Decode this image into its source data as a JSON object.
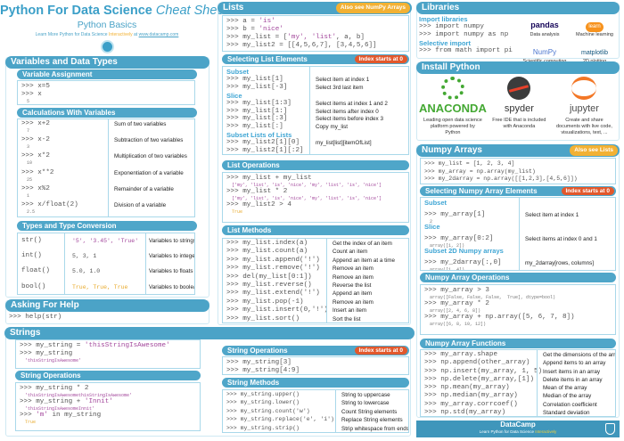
{
  "header": {
    "title_main": "Python For Data Science",
    "title_italic": "Cheat Sheet",
    "subtitle": "Python Basics",
    "learn_text": "Learn More Python for Data Science",
    "learn_interactive": "Interactively",
    "learn_at": "at",
    "learn_link": "www.datacamp.com"
  },
  "colors": {
    "bar": "#4ba3c7",
    "border": "#a9d8ea",
    "badge_orange": "#f2b134",
    "badge_red": "#e2582c",
    "string": "#a3489c",
    "boolean": "#e8a92a",
    "label": "#3ea5d4"
  },
  "vars": {
    "title": "Variables and Data Types",
    "assign": {
      "title": "Variable Assignment",
      "lines": [
        {
          "code": ">>> x=5"
        },
        {
          "code": ">>> x"
        },
        {
          "out": "5"
        }
      ]
    },
    "calc": {
      "title": "Calculations With Variables",
      "rows": [
        {
          "code": ">>> x+2",
          "out": "7",
          "desc": "Sum of two variables"
        },
        {
          "code": ">>> x-2",
          "out": "3",
          "desc": "Subtraction of two variables"
        },
        {
          "code": ">>> x*2",
          "out": "10",
          "desc": "Multiplication of two variables"
        },
        {
          "code": ">>> x**2",
          "out": "25",
          "desc": "Exponentiation of a variable"
        },
        {
          "code": ">>> x%2",
          "out": "1",
          "desc": "Remainder of a variable"
        },
        {
          "code": ">>> x/float(2)",
          "out": "2.5",
          "desc": "Division of a variable"
        }
      ]
    },
    "types": {
      "title": "Types and Type Conversion",
      "rows": [
        {
          "fn": "str()",
          "vals": "'5', '3.45', 'True'",
          "vc": "purple",
          "desc": "Variables to strings"
        },
        {
          "fn": "int()",
          "vals": "5, 3, 1",
          "vc": "",
          "desc": "Variables to integers"
        },
        {
          "fn": "float()",
          "vals": "5.0, 1.0",
          "vc": "",
          "desc": "Variables to floats"
        },
        {
          "fn": "bool()",
          "vals": "True, True, True",
          "vc": "yellow",
          "desc": "Variables to booleans"
        }
      ]
    }
  },
  "help": {
    "title": "Asking For Help",
    "lines": [
      {
        "code": ">>> help(str)"
      }
    ]
  },
  "strings": {
    "title": "Strings",
    "intro": [
      {
        "code": ">>> my_string = ",
        "s": "'thisStringIsAwesome'"
      },
      {
        "code": ">>> my_string"
      },
      {
        "out": "'thisStringIsAwesome'",
        "oc": "purple"
      }
    ],
    "ops1": {
      "title": "String Operations",
      "lines": [
        {
          "code": ">>> my_string * 2"
        },
        {
          "out": "'thisStringIsAwesomethisStringIsAwesome'",
          "oc": "purple"
        },
        {
          "code": ">>> my_string + ",
          "s": "'Innit'"
        },
        {
          "out": "'thisStringIsAwesomeInnit'",
          "oc": "purple"
        },
        {
          "code": ">>> ",
          "s": "'m'",
          "code2": " in my_string"
        },
        {
          "out": "True",
          "oc": "yellow"
        }
      ]
    },
    "ops2": {
      "title": "String Operations",
      "badge": "Index starts at 0",
      "lines": [
        {
          "code": ">>> my_string[3]"
        },
        {
          "code": ">>> my_string[4:9]"
        }
      ]
    },
    "methods": {
      "title": "String Methods",
      "rows": [
        {
          "code": ">>> my_string.upper()",
          "desc": "String to uppercase"
        },
        {
          "code": ">>> my_string.lower()",
          "desc": "String to lowercase"
        },
        {
          "code": ">>> my_string.count('w')",
          "desc": "Count String elements"
        },
        {
          "code": ">>> my_string.replace('e', 'i')",
          "desc": "Replace String elements"
        },
        {
          "code": ">>> my_string.strip()",
          "desc": "Strip whitespace from ends"
        }
      ]
    }
  },
  "lists": {
    "title": "Lists",
    "badge": "Also see NumPy Arrays",
    "intro": [
      {
        "code": ">>> a = ",
        "s": "'is'"
      },
      {
        "code": ">>> b = ",
        "s": "'nice'"
      },
      {
        "code": ">>> my_list = [",
        "s": "'my', 'list'",
        "code2": ", a, b]"
      },
      {
        "code": ">>> my_list2 = [[4,5,6,7], [3,4,5,6]]"
      }
    ],
    "select": {
      "title": "Selecting List Elements",
      "badge": "Index starts at 0",
      "rows": [
        {
          "label": "Subset"
        },
        {
          "code": ">>> my_list[1]",
          "desc": "Select item at index 1"
        },
        {
          "code": ">>> my_list[-3]",
          "desc": "Select 3rd last item"
        },
        {
          "label": "Slice"
        },
        {
          "code": ">>> my_list[1:3]",
          "desc": "Select items at index 1 and 2"
        },
        {
          "code": ">>> my_list[1:]",
          "desc": "Select items after index 0"
        },
        {
          "code": ">>> my_list[:3]",
          "desc": "Select items before index 3"
        },
        {
          "code": ">>> my_list[:]",
          "desc": "Copy my_list"
        },
        {
          "label": "Subset Lists of Lists"
        },
        {
          "code": ">>> my_list2[1][0]",
          "desc": "my_list[list][itemOfList]"
        },
        {
          "code": ">>> my_list2[1][:2]"
        }
      ]
    },
    "ops": {
      "title": "List Operations",
      "lines": [
        {
          "code": ">>> my_list + my_list"
        },
        {
          "out": "['my', 'list', 'is', 'nice', 'my', 'list', 'is', 'nice']",
          "oc": "purple"
        },
        {
          "code": ">>> my_list * 2"
        },
        {
          "out": "['my', 'list', 'is', 'nice', 'my', 'list', 'is', 'nice']",
          "oc": "purple"
        },
        {
          "code": ">>> my_list2 > 4"
        },
        {
          "out": "True",
          "oc": "yellow"
        }
      ]
    },
    "methods": {
      "title": "List Methods",
      "rows": [
        {
          "code": ">>> my_list.index(a)",
          "desc": "Get the index of an item"
        },
        {
          "code": ">>> my_list.count(a)",
          "desc": "Count an item"
        },
        {
          "code": ">>> my_list.append('!')",
          "desc": "Append an item at a time"
        },
        {
          "code": ">>> my_list.remove('!')",
          "desc": "Remove an item"
        },
        {
          "code": ">>> del(my_list[0:1])",
          "desc": "Remove an item"
        },
        {
          "code": ">>> my_list.reverse()",
          "desc": "Reverse the list"
        },
        {
          "code": ">>> my_list.extend('!')",
          "desc": "Append an item"
        },
        {
          "code": ">>> my_list.pop(-1)",
          "desc": "Remove an item"
        },
        {
          "code": ">>> my_list.insert(0,'!')",
          "desc": "Insert an item"
        },
        {
          "code": ">>> my_list.sort()",
          "desc": "Sort the list"
        }
      ]
    }
  },
  "libraries": {
    "title": "Libraries",
    "import_label": "Import libraries",
    "selective_label": "Selective import",
    "lines1": [
      {
        "code": ">>> import numpy"
      },
      {
        "code": ">>> import numpy as np"
      }
    ],
    "lines2": [
      {
        "code": ">>> from math import pi"
      }
    ],
    "logos": [
      {
        "name": "pandas",
        "caption": "Data analysis"
      },
      {
        "name": "learn",
        "caption": "Machine learning"
      },
      {
        "name": "NumPy",
        "caption": "Scientific computing"
      },
      {
        "name": "matplotlib",
        "caption": "2D plotting"
      }
    ]
  },
  "install": {
    "title": "Install Python",
    "items": [
      {
        "name": "ANACONDA",
        "caption": "Leading open data science platform powered by Python"
      },
      {
        "name": "spyder",
        "caption": "Free IDE that is included with Anaconda"
      },
      {
        "name": "jupyter",
        "caption": "Create and share documents with live code, visualizations, text, ..."
      }
    ]
  },
  "numpy": {
    "title": "Numpy Arrays",
    "badge": "Also see Lists",
    "intro": [
      {
        "code": ">>> my_list = [1, 2, 3, 4]"
      },
      {
        "code": ">>> my_array = np.array(my_list)"
      },
      {
        "code": ">>> my_2darray = np.array([[1,2,3],[4,5,6]])"
      }
    ],
    "select": {
      "title": "Selecting Numpy Array Elements",
      "badge": "Index starts at 0",
      "rows": [
        {
          "label": "Subset"
        },
        {
          "code": ">>> my_array[1]",
          "out": "2",
          "desc": "Select item at index 1"
        },
        {
          "label": "Slice"
        },
        {
          "code": ">>> my_array[0:2]",
          "out": "array([1, 2])",
          "desc": "Select items at index 0 and 1"
        },
        {
          "label": "Subset 2D Numpy arrays"
        },
        {
          "code": ">>> my_2darray[:,0]",
          "out": "array([1, 4])",
          "desc": "my_2darray[rows, columns]"
        }
      ]
    },
    "ops": {
      "title": "Numpy Array Operations",
      "lines": [
        {
          "code": ">>> my_array > 3"
        },
        {
          "out": "array([False, False, False,  True], dtype=bool)"
        },
        {
          "code": ">>> my_array * 2"
        },
        {
          "out": "array([2, 4, 6, 8])"
        },
        {
          "code": ">>> my_array + np.array([5, 6, 7, 8])"
        },
        {
          "out": "array([6, 8, 10, 12])"
        }
      ]
    },
    "funcs": {
      "title": "Numpy Array Functions",
      "rows": [
        {
          "code": ">>> my_array.shape",
          "desc": "Get the dimensions of the array"
        },
        {
          "code": ">>> np.append(other_array)",
          "desc": "Append items to an array"
        },
        {
          "code": ">>> np.insert(my_array, 1, 5)",
          "desc": "Insert items in an array"
        },
        {
          "code": ">>> np.delete(my_array,[1])",
          "desc": "Delete items in an array"
        },
        {
          "code": ">>> np.mean(my_array)",
          "desc": "Mean of the array"
        },
        {
          "code": ">>> np.median(my_array)",
          "desc": "Median of the array"
        },
        {
          "code": ">>> my_array.corrcoef()",
          "desc": "Correlation coefficient"
        },
        {
          "code": ">>> np.std(my_array)",
          "desc": "Standard deviation"
        }
      ]
    }
  },
  "footer": {
    "brand": "DataCamp",
    "tagline": "Learn Python for Data Science",
    "tagline_em": "Interactively"
  }
}
